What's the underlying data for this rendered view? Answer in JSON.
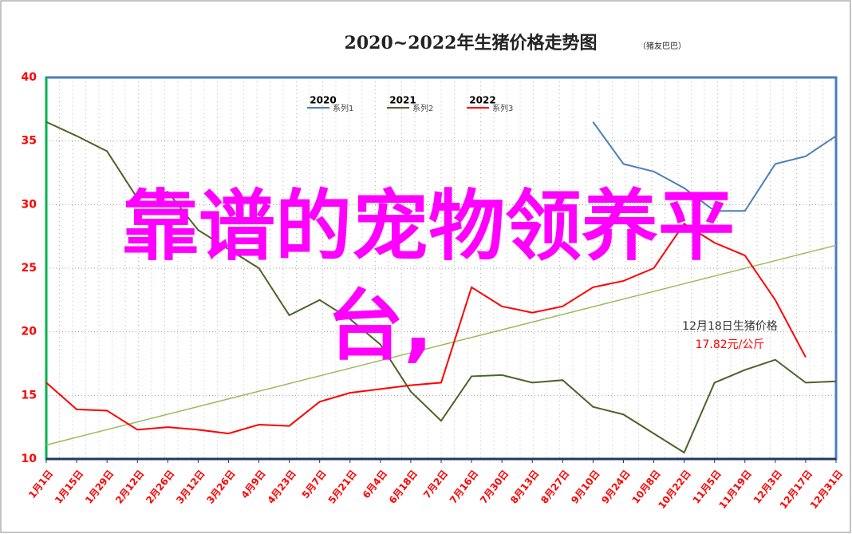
{
  "chart_data": {
    "type": "line",
    "title": "2020~2022年生猪价格走势图",
    "subtitle": "（猪友巴巴）",
    "categories": [
      "1月1日",
      "1月15日",
      "1月29日",
      "2月12日",
      "2月26日",
      "3月12日",
      "3月26日",
      "4月9日",
      "4月23日",
      "5月7日",
      "5月21日",
      "6月4日",
      "6月18日",
      "7月2日",
      "7月16日",
      "7月30日",
      "8月13日",
      "8月27日",
      "9月10日",
      "9月24日",
      "10月8日",
      "10月22日",
      "11月5日",
      "11月19日",
      "12月3日",
      "12月17日",
      "12月31日"
    ],
    "series": [
      {
        "name": "系列1",
        "year": "2020",
        "color": "#4a7ebb",
        "values": [
          null,
          null,
          null,
          null,
          null,
          null,
          null,
          null,
          null,
          null,
          null,
          null,
          null,
          null,
          null,
          null,
          null,
          null,
          36.5,
          33.2,
          32.6,
          31.3,
          29.5,
          29.5,
          33.2,
          33.8,
          35.4
        ]
      },
      {
        "name": "系列2",
        "year": "2021",
        "color": "#4f6228",
        "values": [
          36.5,
          35.4,
          34.2,
          30.5,
          31,
          28,
          26.5,
          25,
          21.3,
          22.5,
          21,
          19,
          15.3,
          13,
          16.5,
          16.6,
          16,
          16.2,
          14.1,
          13.5,
          12,
          10.5,
          16,
          17,
          17.8,
          16,
          16.1
        ]
      },
      {
        "name": "系列3",
        "year": "2022",
        "color": "#ff0000",
        "values": [
          16,
          13.9,
          13.8,
          12.3,
          12.5,
          12.3,
          12,
          12.7,
          12.6,
          14.5,
          15.2,
          15.5,
          15.8,
          16,
          23.5,
          22,
          21.5,
          22,
          23.5,
          24,
          25,
          28.5,
          27,
          26,
          22.5,
          18,
          null
        ]
      }
    ],
    "trendline": {
      "color": "#9bbb59",
      "values": [
        11.1,
        26.8
      ]
    },
    "ylim": [
      10,
      40
    ],
    "yticks": [
      10,
      15,
      20,
      25,
      30,
      35,
      40
    ],
    "grid": true,
    "annotation": {
      "title": "12月18日生猪价格",
      "value": "17.82元/公斤"
    },
    "overlay": {
      "color": "#ff00ff",
      "lines": [
        "靠谱的宠物领养平",
        "台,"
      ]
    }
  }
}
